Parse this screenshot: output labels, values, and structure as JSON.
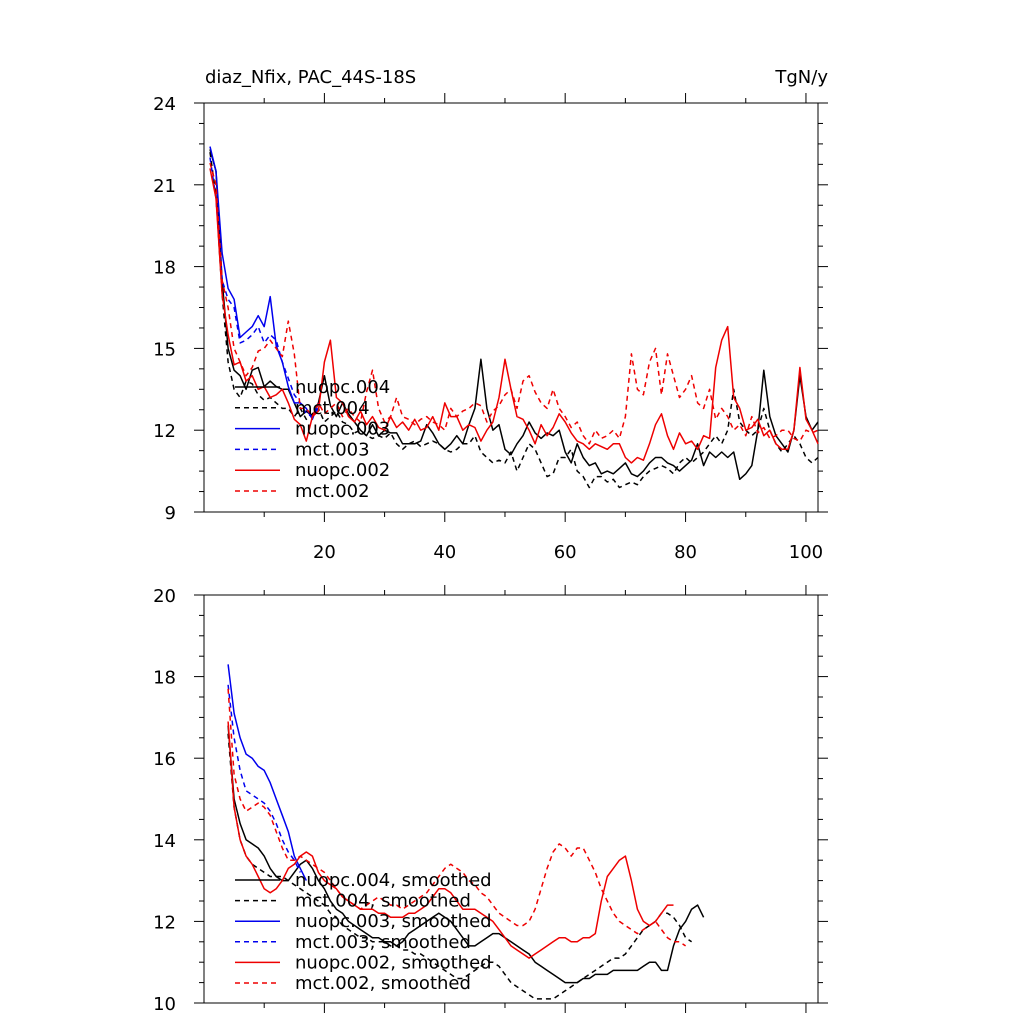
{
  "chart_data": [
    {
      "type": "line",
      "title": "diaz_Nfix, PAC_44S-18S",
      "units": "TgN/y",
      "xlim": [
        0,
        102
      ],
      "ylim": [
        9,
        24
      ],
      "xticks": [
        20,
        40,
        60,
        80,
        100
      ],
      "yticks": [
        9,
        12,
        15,
        18,
        21,
        24
      ],
      "legend_position": "bottom-left",
      "series": [
        {
          "name": "nuopc.004",
          "color": "#000000",
          "dash": "solid",
          "x_start": 1,
          "values": [
            22.3,
            21.5,
            17.5,
            15.0,
            14.2,
            14.0,
            13.5,
            14.2,
            14.3,
            13.6,
            13.8,
            13.6,
            13.5,
            13.5,
            13.0,
            12.5,
            12.7,
            12.5,
            13.0,
            14.0,
            12.9,
            12.5,
            13.0,
            12.6,
            12.3,
            12.0,
            11.8,
            12.2,
            11.8,
            12.0,
            11.9,
            11.9,
            11.5,
            11.5,
            11.5,
            11.6,
            12.2,
            11.9,
            11.5,
            11.3,
            11.5,
            11.8,
            11.5,
            12.2,
            12.8,
            14.6,
            12.8,
            12.0,
            12.2,
            11.3,
            11.1,
            11.5,
            11.8,
            12.3,
            11.9,
            11.7,
            11.9,
            11.8,
            12.0,
            11.2,
            10.8,
            11.5,
            11.0,
            10.7,
            10.8,
            10.4,
            10.5,
            10.4,
            10.6,
            10.8,
            10.4,
            10.3,
            10.5,
            10.8,
            11.0,
            11.0,
            10.8,
            10.7,
            10.5,
            10.7,
            10.9,
            11.5,
            10.7,
            11.2,
            11.0,
            11.2,
            11.0,
            11.2,
            10.2,
            10.4,
            10.7,
            12.0,
            14.2,
            12.5,
            11.8,
            11.5,
            11.2,
            12.0,
            14.0,
            12.5,
            12.0,
            12.3
          ]
        },
        {
          "name": "mct.004",
          "color": "#000000",
          "dash": "dashed",
          "x_start": 1,
          "values": [
            22.2,
            20.6,
            17.0,
            14.5,
            13.5,
            13.2,
            13.8,
            13.7,
            13.3,
            13.1,
            13.2,
            13.0,
            12.8,
            12.8,
            12.5,
            12.8,
            12.4,
            12.6,
            12.8,
            12.3,
            12.5,
            12.7,
            12.3,
            12.2,
            11.9,
            12.0,
            11.8,
            11.7,
            11.8,
            11.7,
            11.9,
            11.5,
            11.3,
            11.5,
            11.6,
            11.4,
            11.5,
            11.6,
            11.5,
            11.3,
            11.2,
            11.3,
            11.5,
            11.5,
            11.8,
            11.2,
            11.0,
            10.8,
            10.9,
            10.8,
            11.2,
            10.5,
            11.0,
            11.5,
            11.3,
            10.8,
            10.3,
            10.4,
            11.0,
            11.0,
            11.3,
            10.5,
            10.3,
            9.9,
            10.3,
            10.3,
            10.1,
            10.2,
            9.9,
            10.0,
            10.1,
            10.0,
            10.3,
            10.5,
            10.6,
            10.7,
            10.6,
            10.4,
            10.8,
            11.0,
            10.8,
            11.0,
            11.2,
            11.5,
            11.8,
            11.5,
            12.0,
            13.5,
            12.3,
            12.0,
            11.8,
            12.0,
            12.8,
            12.0,
            11.5,
            11.2,
            11.5,
            11.8,
            11.5,
            11.0,
            10.8,
            11.0
          ]
        },
        {
          "name": "nuopc.003",
          "color": "#0000ee",
          "dash": "solid",
          "x_start": 1,
          "values": [
            22.4,
            21.5,
            18.5,
            17.2,
            16.8,
            15.4,
            15.6,
            15.8,
            16.2,
            15.8,
            16.9,
            15.1,
            14.5,
            13.6,
            13.0,
            13.0,
            12.8,
            12.4,
            13.0
          ]
        },
        {
          "name": "mct.003",
          "color": "#0000ee",
          "dash": "dashed",
          "x_start": 1,
          "values": [
            22.0,
            20.5,
            17.5,
            16.8,
            16.5,
            15.2,
            15.3,
            15.5,
            15.8,
            15.2,
            15.5,
            15.3,
            14.5,
            13.9,
            13.3,
            13.0,
            12.6,
            12.5,
            12.8
          ]
        },
        {
          "name": "nuopc.002",
          "color": "#ee0000",
          "dash": "solid",
          "x_start": 1,
          "values": [
            21.6,
            20.5,
            17.0,
            15.5,
            14.4,
            14.5,
            13.8,
            14.0,
            13.5,
            13.6,
            13.2,
            13.3,
            13.5,
            13.0,
            12.4,
            12.2,
            11.6,
            12.5,
            12.7,
            14.5,
            15.3,
            13.2,
            13.0,
            12.5,
            12.3,
            12.7,
            12.2,
            12.5,
            12.1,
            12.0,
            12.5,
            12.1,
            12.3,
            12.0,
            12.4,
            12.0,
            12.1,
            12.5,
            12.0,
            13.0,
            12.5,
            12.5,
            12.0,
            12.2,
            12.1,
            11.6,
            12.0,
            12.3,
            13.2,
            14.6,
            13.5,
            12.5,
            12.4,
            12.0,
            11.5,
            12.2,
            11.8,
            12.1,
            12.6,
            12.3,
            11.9,
            11.6,
            11.5,
            11.3,
            11.5,
            11.4,
            11.3,
            11.5,
            11.5,
            11.0,
            10.8,
            11.0,
            10.9,
            11.5,
            12.2,
            12.6,
            11.8,
            11.3,
            11.9,
            11.5,
            11.6,
            11.3,
            11.8,
            11.7,
            14.3,
            15.3,
            15.8,
            13.2,
            12.8,
            12.0,
            12.1,
            12.4,
            11.8,
            12.0,
            11.5,
            11.3,
            11.3,
            12.0,
            14.3,
            12.4,
            12.0,
            11.5
          ]
        },
        {
          "name": "mct.002",
          "color": "#ee0000",
          "dash": "dashed",
          "x_start": 1,
          "values": [
            21.8,
            21.0,
            17.5,
            16.5,
            15.0,
            14.5,
            14.0,
            14.3,
            14.9,
            15.0,
            15.3,
            15.0,
            14.7,
            16.0,
            14.8,
            12.8,
            12.8,
            12.5,
            13.0,
            12.6,
            12.8,
            13.0,
            12.5,
            12.8,
            12.5,
            12.3,
            13.4,
            14.2,
            12.8,
            12.3,
            12.5,
            13.2,
            12.5,
            12.4,
            12.2,
            12.4,
            12.5,
            12.3,
            12.2,
            12.0,
            12.8,
            12.5,
            12.7,
            12.8,
            13.0,
            12.9,
            12.3,
            12.7,
            12.9,
            13.3,
            13.5,
            12.8,
            13.8,
            14.0,
            13.4,
            13.0,
            12.8,
            13.5,
            12.8,
            12.5,
            12.1,
            12.3,
            11.8,
            11.5,
            12.0,
            11.7,
            11.8,
            12.0,
            11.7,
            12.5,
            14.8,
            13.5,
            13.3,
            14.5,
            15.0,
            13.3,
            14.8,
            14.0,
            13.2,
            13.5,
            14.0,
            13.0,
            12.8,
            13.5,
            12.4,
            12.8,
            12.5,
            12.0,
            12.2,
            11.8,
            12.5,
            11.9,
            12.1,
            11.7,
            11.8,
            12.0,
            12.0,
            11.7,
            11.6,
            12.0,
            11.9,
            12.0
          ]
        }
      ]
    },
    {
      "type": "line",
      "title": "",
      "xlim": [
        0,
        102
      ],
      "ylim": [
        10,
        20
      ],
      "xticks": [
        20,
        40,
        60,
        80,
        100
      ],
      "yticks": [
        10,
        12,
        14,
        16,
        18,
        20
      ],
      "legend_position": "bottom-left",
      "series": [
        {
          "name": "nuopc.004, smoothed",
          "color": "#000000",
          "dash": "solid",
          "x_start": 4,
          "values": [
            16.8,
            15.0,
            14.4,
            14.0,
            13.9,
            13.8,
            13.6,
            13.3,
            13.1,
            13.0,
            13.0,
            13.2,
            13.4,
            13.5,
            13.3,
            13.0,
            12.8,
            12.5,
            12.3,
            12.2,
            12.0,
            11.9,
            11.8,
            11.7,
            11.6,
            11.6,
            11.5,
            11.5,
            11.4,
            11.5,
            11.7,
            11.8,
            11.9,
            12.0,
            12.1,
            12.2,
            12.1,
            12.0,
            11.8,
            11.6,
            11.4,
            11.4,
            11.5,
            11.6,
            11.7,
            11.7,
            11.6,
            11.5,
            11.4,
            11.3,
            11.2,
            11.0,
            10.9,
            10.8,
            10.7,
            10.6,
            10.5,
            10.5,
            10.5,
            10.6,
            10.6,
            10.7,
            10.7,
            10.7,
            10.8,
            10.8,
            10.8,
            10.8,
            10.8,
            10.9,
            11.0,
            11.0,
            10.8,
            10.8,
            11.4,
            11.8,
            12.0,
            12.3,
            12.4,
            12.1
          ]
        },
        {
          "name": "mct.004, smoothed",
          "color": "#000000",
          "dash": "dashed",
          "x_start": 4,
          "values": [
            16.6,
            14.8,
            14.0,
            13.6,
            13.4,
            13.3,
            13.2,
            13.1,
            13.1,
            13.1,
            13.0,
            12.9,
            12.8,
            12.7,
            12.6,
            12.5,
            12.4,
            12.2,
            12.1,
            11.9,
            11.8,
            11.7,
            11.6,
            11.6,
            11.5,
            11.5,
            11.5,
            11.4,
            11.4,
            11.3,
            11.3,
            11.2,
            11.2,
            11.1,
            11.0,
            10.9,
            10.8,
            10.7,
            10.6,
            10.6,
            10.7,
            10.8,
            10.9,
            11.0,
            11.0,
            10.9,
            10.7,
            10.5,
            10.4,
            10.3,
            10.2,
            10.1,
            10.1,
            10.1,
            10.1,
            10.2,
            10.3,
            10.4,
            10.5,
            10.6,
            10.7,
            10.8,
            10.9,
            11.0,
            11.1,
            11.1,
            11.2,
            11.4,
            11.6,
            11.8,
            11.9,
            12.0,
            12.2,
            12.2,
            12.1,
            11.9,
            11.6,
            11.5
          ]
        },
        {
          "name": "nuopc.003, smoothed",
          "color": "#0000ee",
          "dash": "solid",
          "x_start": 4,
          "values": [
            18.3,
            17.1,
            16.5,
            16.1,
            16.0,
            15.8,
            15.7,
            15.4,
            15.0,
            14.6,
            14.2,
            13.6,
            13.3,
            13.0
          ]
        },
        {
          "name": "mct.003, smoothed",
          "color": "#0000ee",
          "dash": "dashed",
          "x_start": 4,
          "values": [
            17.8,
            16.5,
            15.7,
            15.2,
            15.1,
            15.0,
            14.9,
            14.7,
            14.4,
            14.0,
            13.7,
            13.5,
            13.2
          ]
        },
        {
          "name": "nuopc.002, smoothed",
          "color": "#ee0000",
          "dash": "solid",
          "x_start": 4,
          "values": [
            16.9,
            14.8,
            14.0,
            13.6,
            13.4,
            13.1,
            12.8,
            12.7,
            12.8,
            13.0,
            13.3,
            13.4,
            13.6,
            13.7,
            13.6,
            13.2,
            13.0,
            12.9,
            12.8,
            12.6,
            12.5,
            12.4,
            12.3,
            12.3,
            12.3,
            12.2,
            12.2,
            12.1,
            12.1,
            12.1,
            12.2,
            12.2,
            12.3,
            12.4,
            12.6,
            12.8,
            12.8,
            12.7,
            12.5,
            12.3,
            12.3,
            12.3,
            12.2,
            12.1,
            12.0,
            11.8,
            11.6,
            11.4,
            11.3,
            11.2,
            11.1,
            11.2,
            11.3,
            11.4,
            11.5,
            11.6,
            11.6,
            11.5,
            11.5,
            11.6,
            11.6,
            11.7,
            12.5,
            13.1,
            13.3,
            13.5,
            13.6,
            13.0,
            12.3,
            12.0,
            11.9,
            12.0,
            12.2,
            12.4,
            12.4
          ]
        },
        {
          "name": "mct.002, smoothed",
          "color": "#ee0000",
          "dash": "dashed",
          "x_start": 4,
          "values": [
            17.7,
            15.6,
            15.0,
            14.7,
            14.8,
            14.9,
            14.8,
            14.6,
            14.2,
            13.8,
            13.5,
            13.5,
            13.6,
            13.5,
            13.4,
            13.3,
            13.2,
            13.0,
            12.8,
            12.6,
            12.5,
            12.4,
            12.3,
            12.4,
            12.5,
            12.6,
            12.5,
            12.4,
            12.4,
            12.3,
            12.4,
            12.5,
            12.6,
            12.7,
            12.9,
            13.1,
            13.3,
            13.4,
            13.3,
            13.2,
            13.0,
            12.9,
            12.7,
            12.6,
            12.4,
            12.2,
            12.1,
            12.0,
            11.9,
            11.9,
            12.0,
            12.3,
            12.8,
            13.3,
            13.7,
            13.9,
            13.8,
            13.6,
            13.8,
            13.8,
            13.5,
            13.2,
            12.8,
            12.5,
            12.2,
            12.0,
            11.9,
            11.8,
            11.7,
            11.8,
            11.9,
            12.0,
            11.8,
            11.6,
            11.5,
            11.5,
            11.4
          ]
        }
      ]
    }
  ]
}
